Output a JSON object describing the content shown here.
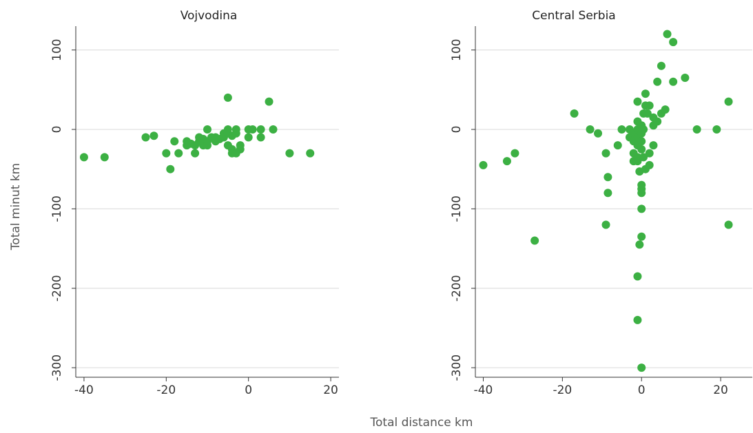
{
  "colors": {
    "marker": "#3cb043",
    "grid": "#d9d9d9",
    "axis": "#333333"
  },
  "chart_data": {
    "type": "scatter",
    "xlabel": "Total distance km",
    "ylabel": "Total minut km",
    "grid": true,
    "panels": [
      {
        "title": "Vojvodina",
        "xlim": [
          -42,
          22
        ],
        "ylim": [
          -312,
          130
        ],
        "xticks": [
          -40,
          -20,
          0,
          20
        ],
        "xtick_labels": [
          "-40",
          "-20",
          "0",
          "20"
        ],
        "yticks": [
          100,
          0,
          -100,
          -200,
          -300
        ],
        "ytick_labels": [
          "100",
          "0",
          "-100",
          "-200",
          "-300"
        ],
        "points": [
          [
            -40,
            -35
          ],
          [
            -35,
            -35
          ],
          [
            -25,
            -10
          ],
          [
            -23,
            -8
          ],
          [
            -20,
            -30
          ],
          [
            -19,
            -50
          ],
          [
            -18,
            -15
          ],
          [
            -17,
            -30
          ],
          [
            -15,
            -15
          ],
          [
            -15,
            -20
          ],
          [
            -14,
            -18
          ],
          [
            -13,
            -20
          ],
          [
            -13,
            -30
          ],
          [
            -12,
            -10
          ],
          [
            -12,
            -15
          ],
          [
            -11,
            -20
          ],
          [
            -11,
            -12
          ],
          [
            -10,
            0
          ],
          [
            -10,
            -15
          ],
          [
            -10,
            -20
          ],
          [
            -9,
            -10
          ],
          [
            -8,
            -10
          ],
          [
            -8,
            -15
          ],
          [
            -7,
            -12
          ],
          [
            -6,
            -5
          ],
          [
            -6,
            -10
          ],
          [
            -5,
            40
          ],
          [
            -5,
            0
          ],
          [
            -5,
            -5
          ],
          [
            -5,
            -20
          ],
          [
            -4,
            -8
          ],
          [
            -4,
            -25
          ],
          [
            -4,
            -30
          ],
          [
            -3,
            0
          ],
          [
            -3,
            -5
          ],
          [
            -3,
            -30
          ],
          [
            -2,
            -20
          ],
          [
            -2,
            -25
          ],
          [
            0,
            0
          ],
          [
            0,
            -10
          ],
          [
            1,
            0
          ],
          [
            3,
            0
          ],
          [
            3,
            -10
          ],
          [
            5,
            35
          ],
          [
            6,
            0
          ],
          [
            10,
            -30
          ],
          [
            15,
            -30
          ]
        ]
      },
      {
        "title": "Central Serbia",
        "xlim": [
          -42,
          28
        ],
        "ylim": [
          -312,
          130
        ],
        "xticks": [
          -40,
          -20,
          0,
          20
        ],
        "xtick_labels": [
          "-40",
          "-20",
          "0",
          "20"
        ],
        "yticks": [
          100,
          0,
          -100,
          -200,
          -300
        ],
        "ytick_labels": [
          "100",
          "0",
          "-100",
          "-200",
          "-300"
        ],
        "points": [
          [
            -40,
            -45
          ],
          [
            -34,
            -40
          ],
          [
            -32,
            -30
          ],
          [
            -27,
            -140
          ],
          [
            -17,
            20
          ],
          [
            -13,
            0
          ],
          [
            -11,
            -5
          ],
          [
            -9,
            -30
          ],
          [
            -8.5,
            -60
          ],
          [
            -8.5,
            -80
          ],
          [
            -9,
            -120
          ],
          [
            -6,
            -20
          ],
          [
            -5,
            0
          ],
          [
            -3,
            0
          ],
          [
            -3,
            -10
          ],
          [
            -2,
            -5
          ],
          [
            -2,
            -15
          ],
          [
            -2,
            -30
          ],
          [
            -2,
            -40
          ],
          [
            -1,
            10
          ],
          [
            -1,
            35
          ],
          [
            -1,
            0
          ],
          [
            -1,
            -10
          ],
          [
            -1,
            -20
          ],
          [
            -1,
            -35
          ],
          [
            -1,
            -40
          ],
          [
            -1,
            -185
          ],
          [
            -1,
            -240
          ],
          [
            -0.5,
            -145
          ],
          [
            -0.5,
            -53
          ],
          [
            0,
            5
          ],
          [
            0,
            -5
          ],
          [
            0,
            -15
          ],
          [
            0,
            -25
          ],
          [
            0,
            -70
          ],
          [
            0,
            -75
          ],
          [
            0,
            -80
          ],
          [
            0,
            -100
          ],
          [
            0,
            -135
          ],
          [
            0,
            -300
          ],
          [
            0.5,
            20
          ],
          [
            0.5,
            0
          ],
          [
            0.5,
            -35
          ],
          [
            1,
            45
          ],
          [
            1,
            30
          ],
          [
            1,
            -50
          ],
          [
            1.5,
            20
          ],
          [
            2,
            30
          ],
          [
            2,
            -30
          ],
          [
            2,
            -45
          ],
          [
            3,
            5
          ],
          [
            3,
            15
          ],
          [
            3,
            -20
          ],
          [
            4,
            10
          ],
          [
            4,
            60
          ],
          [
            5,
            20
          ],
          [
            5,
            80
          ],
          [
            6,
            25
          ],
          [
            6.5,
            120
          ],
          [
            8,
            110
          ],
          [
            8,
            60
          ],
          [
            11,
            65
          ],
          [
            14,
            0
          ],
          [
            19,
            0
          ],
          [
            22,
            35
          ],
          [
            22,
            -120
          ]
        ]
      }
    ]
  }
}
